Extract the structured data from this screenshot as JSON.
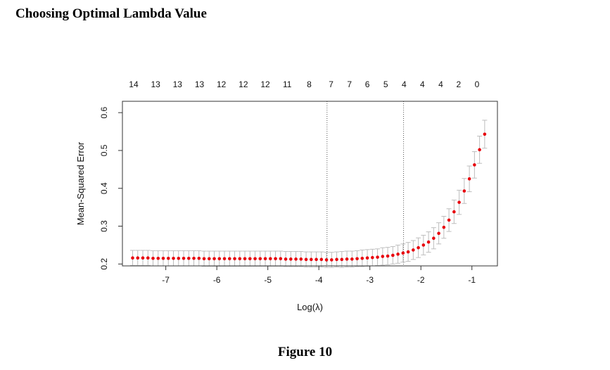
{
  "document": {
    "heading": "Choosing Optimal Lambda Value",
    "caption": "Figure 10"
  },
  "chart_data": {
    "type": "scatter",
    "xlabel": "Log(λ)",
    "ylabel": "Mean-Squared Error",
    "xlim": [
      -7.85,
      -0.5
    ],
    "ylim": [
      0.195,
      0.63
    ],
    "x_ticks": [
      -7,
      -6,
      -5,
      -4,
      -3,
      -2,
      -1
    ],
    "y_ticks": [
      0.2,
      0.3,
      0.4,
      0.5,
      0.6
    ],
    "grid": false,
    "legend": "none",
    "colors": {
      "points": "#e8000b",
      "error_bars": "#bdbdbd",
      "vlines": "#555555"
    },
    "top_labels": {
      "x": [
        -7.63,
        -7.2,
        -6.77,
        -6.34,
        -5.91,
        -5.48,
        -5.05,
        -4.62,
        -4.19,
        -3.76,
        -3.4,
        -3.05,
        -2.69,
        -2.33,
        -1.97,
        -1.61,
        -1.26,
        -0.9
      ],
      "labels": [
        "14",
        "13",
        "13",
        "13",
        "12",
        "12",
        "12",
        "11",
        "8",
        "7",
        "7",
        "6",
        "5",
        "4",
        "4",
        "4",
        "2",
        "0"
      ]
    },
    "vlines": [
      -3.84,
      -2.34
    ],
    "points": {
      "x": [
        -7.65,
        -7.55,
        -7.45,
        -7.35,
        -7.25,
        -7.15,
        -7.05,
        -6.95,
        -6.85,
        -6.75,
        -6.65,
        -6.55,
        -6.45,
        -6.35,
        -6.25,
        -6.15,
        -6.05,
        -5.95,
        -5.85,
        -5.75,
        -5.65,
        -5.55,
        -5.45,
        -5.35,
        -5.25,
        -5.15,
        -5.05,
        -4.95,
        -4.85,
        -4.75,
        -4.65,
        -4.55,
        -4.45,
        -4.35,
        -4.25,
        -4.15,
        -4.05,
        -3.95,
        -3.85,
        -3.75,
        -3.65,
        -3.55,
        -3.45,
        -3.35,
        -3.25,
        -3.15,
        -3.05,
        -2.95,
        -2.85,
        -2.75,
        -2.65,
        -2.55,
        -2.45,
        -2.35,
        -2.25,
        -2.15,
        -2.05,
        -1.95,
        -1.85,
        -1.75,
        -1.65,
        -1.55,
        -1.45,
        -1.35,
        -1.25,
        -1.15,
        -1.05,
        -0.95,
        -0.85,
        -0.75
      ],
      "mse": [
        0.216,
        0.216,
        0.216,
        0.216,
        0.215,
        0.215,
        0.215,
        0.215,
        0.215,
        0.215,
        0.215,
        0.215,
        0.215,
        0.215,
        0.214,
        0.214,
        0.214,
        0.214,
        0.214,
        0.214,
        0.214,
        0.214,
        0.214,
        0.214,
        0.214,
        0.214,
        0.214,
        0.214,
        0.214,
        0.214,
        0.213,
        0.213,
        0.213,
        0.213,
        0.212,
        0.212,
        0.212,
        0.212,
        0.211,
        0.211,
        0.212,
        0.212,
        0.213,
        0.213,
        0.214,
        0.215,
        0.216,
        0.217,
        0.218,
        0.22,
        0.221,
        0.223,
        0.226,
        0.229,
        0.232,
        0.237,
        0.243,
        0.25,
        0.258,
        0.268,
        0.281,
        0.297,
        0.316,
        0.338,
        0.363,
        0.393,
        0.425,
        0.462,
        0.502,
        0.543
      ],
      "se": [
        0.02,
        0.02,
        0.02,
        0.02,
        0.02,
        0.02,
        0.02,
        0.02,
        0.02,
        0.02,
        0.02,
        0.02,
        0.02,
        0.02,
        0.02,
        0.02,
        0.02,
        0.02,
        0.02,
        0.02,
        0.02,
        0.02,
        0.02,
        0.02,
        0.02,
        0.02,
        0.02,
        0.02,
        0.02,
        0.02,
        0.02,
        0.02,
        0.02,
        0.02,
        0.02,
        0.02,
        0.02,
        0.02,
        0.02,
        0.02,
        0.02,
        0.021,
        0.021,
        0.021,
        0.021,
        0.022,
        0.022,
        0.022,
        0.022,
        0.023,
        0.023,
        0.023,
        0.024,
        0.024,
        0.025,
        0.025,
        0.026,
        0.026,
        0.027,
        0.028,
        0.028,
        0.029,
        0.03,
        0.031,
        0.032,
        0.033,
        0.034,
        0.035,
        0.036,
        0.037
      ]
    }
  }
}
